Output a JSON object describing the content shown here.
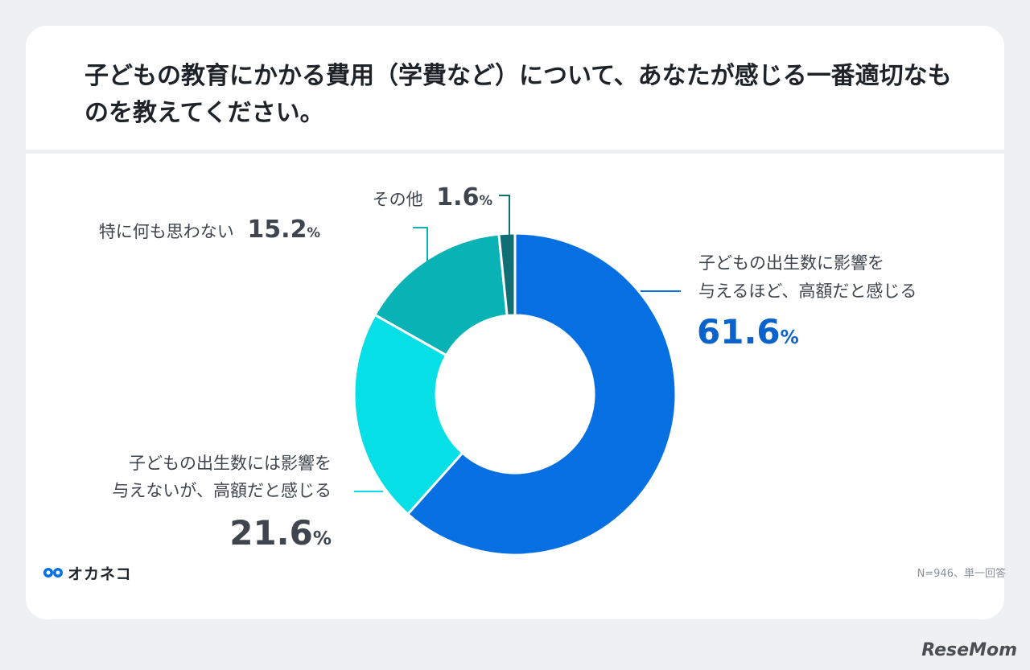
{
  "title": "子どもの教育にかかる費用（学費など）について、あなたが感じる一番適切なものを教えてください。",
  "note": "N=946、単一回答",
  "logo": {
    "text": "オカネコ"
  },
  "watermark": "ReseMom",
  "colors": {
    "background": "#eff0f2",
    "card": "#ffffff",
    "title": "#1e232a",
    "label": "#3f454e",
    "accent_blue": "#0a63cc"
  },
  "chart_data": {
    "type": "pie",
    "variant": "donut",
    "start_angle_deg": 0,
    "direction": "clockwise",
    "unit": "%",
    "slices": [
      {
        "label_line1": "子どもの出生数に影響を",
        "label_line2": "与えるほど、高額だと感じる",
        "value": 61.6,
        "value_text": "61.6",
        "color": "#0670e3"
      },
      {
        "label_line1": "子どもの出生数には影響を",
        "label_line2": "与えないが、高額だと感じる",
        "value": 21.6,
        "value_text": "21.6",
        "color": "#06dfe6"
      },
      {
        "label_line1": "特に何も思わない",
        "label_line2": "",
        "value": 15.2,
        "value_text": "15.2",
        "color": "#09b2b4"
      },
      {
        "label_line1": "その他",
        "label_line2": "",
        "value": 1.6,
        "value_text": "1.6",
        "color": "#0f6f74"
      }
    ]
  }
}
